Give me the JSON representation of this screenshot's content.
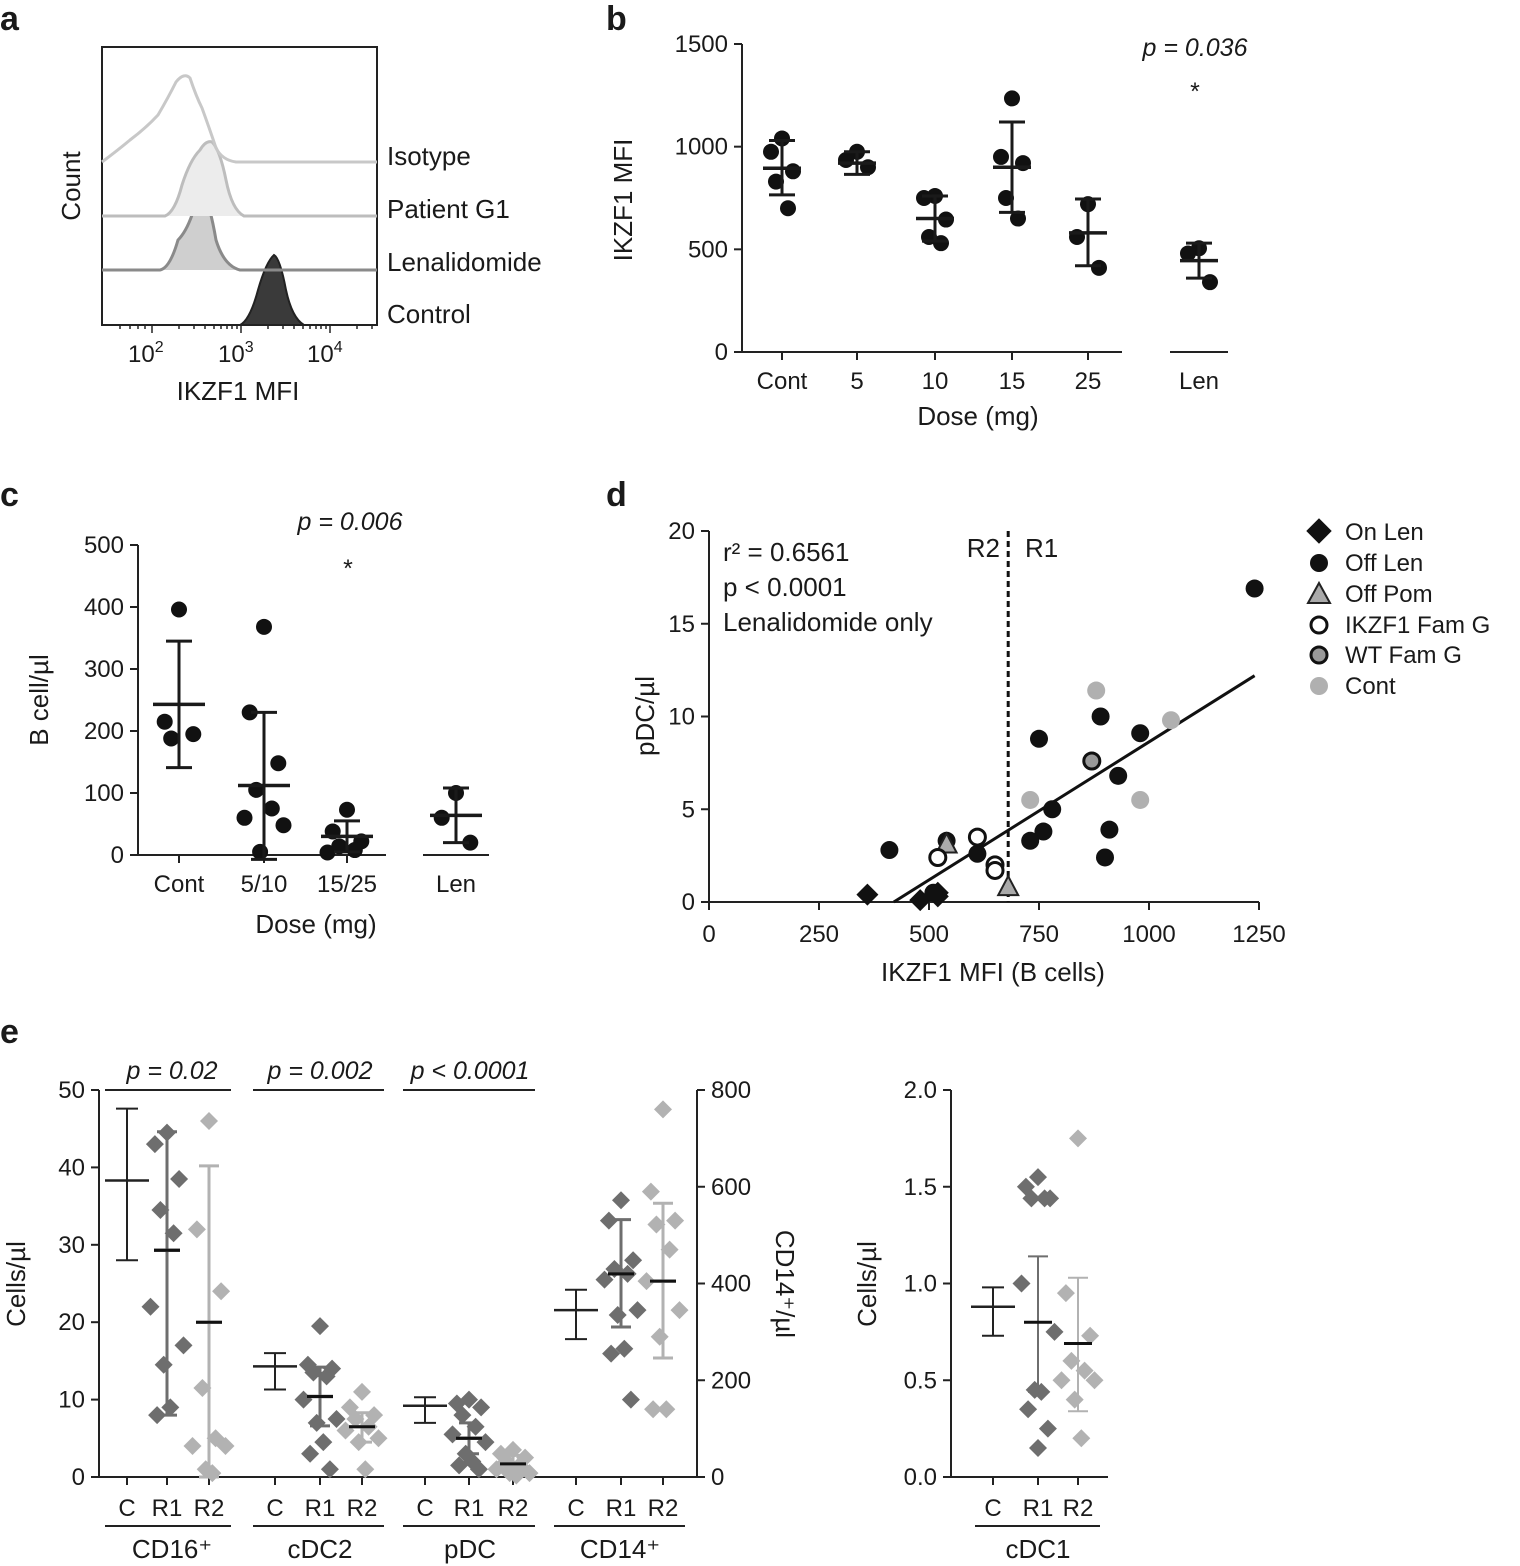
{
  "panels": {
    "a": {
      "label": "a",
      "xlabel": "IKZF1 MFI",
      "ylabel": "Count",
      "xticks": [
        "10",
        "10",
        "10"
      ],
      "xtick_exps": [
        "2",
        "3",
        "4"
      ],
      "tracks": [
        "Isotype",
        "Patient G1",
        "Lenalidomide",
        "Control"
      ],
      "colors": {
        "isotype": "#c8c8c8",
        "patient": "#bdbdbd",
        "lenalidomide": "#8a8a8a",
        "control": "#3a3a3a"
      }
    },
    "b": {
      "label": "b",
      "ylabel": "IKZF1 MFI",
      "xlabel": "Dose (mg)",
      "pvalue": "p = 0.036",
      "star": "*"
    },
    "c": {
      "label": "c",
      "ylabel": "B cell/µl",
      "xlabel": "Dose (mg)",
      "pvalue": "p = 0.006",
      "star": "*"
    },
    "d": {
      "label": "d",
      "xlabel": "IKZF1 MFI (B cells)",
      "ylabel": "pDC/µl",
      "stats": [
        "r² = 0.6561",
        "p < 0.0001",
        "Lenalidomide only"
      ],
      "region_left": "R2",
      "region_right": "R1",
      "legend": [
        "On Len",
        "Off Len",
        "Off Pom",
        "IKZF1 Fam G",
        "WT Fam G",
        "Cont"
      ]
    },
    "e": {
      "label": "e",
      "ylabel_left": "Cells/µl",
      "ylabel_right": "CD14⁺/µl",
      "ylabel_cdc1": "Cells/µl",
      "pvalues": [
        "p = 0.02",
        "p = 0.002",
        "p < 0.0001"
      ],
      "group_labels": [
        "CD16⁺",
        "cDC2",
        "pDC",
        "CD14⁺",
        "cDC1"
      ],
      "sub_labels": [
        "C",
        "R1",
        "R2"
      ]
    }
  },
  "chart_data": [
    {
      "panel": "a",
      "type": "histogram-overlay",
      "title": "",
      "xlabel": "IKZF1 MFI",
      "ylabel": "Count",
      "x_scale": "log10",
      "series": [
        {
          "name": "Isotype",
          "peak_log10": 2.3
        },
        {
          "name": "Patient G1",
          "peak_log10": 2.6
        },
        {
          "name": "Lenalidomide",
          "peak_log10": 2.55
        },
        {
          "name": "Control",
          "peak_log10": 3.35
        }
      ]
    },
    {
      "panel": "b",
      "type": "scatter",
      "xlabel": "Dose (mg)",
      "ylabel": "IKZF1 MFI",
      "ylim": [
        0,
        1500
      ],
      "yticks": [
        0,
        500,
        1000,
        1500
      ],
      "categories": [
        "Cont",
        "5",
        "10",
        "15",
        "25",
        "Len"
      ],
      "points": [
        [
          1040,
          975,
          880,
          830,
          700
        ],
        [
          975,
          935,
          900
        ],
        [
          760,
          750,
          645,
          560,
          530
        ],
        [
          1235,
          950,
          920,
          750,
          650
        ],
        [
          720,
          560,
          410
        ],
        [
          505,
          480,
          340
        ]
      ],
      "means": [
        895,
        920,
        650,
        900,
        580,
        445
      ],
      "sd_upper": [
        1030,
        975,
        760,
        1120,
        745,
        530
      ],
      "sd_lower": [
        765,
        865,
        540,
        680,
        420,
        360
      ],
      "pvalue": "p = 0.036"
    },
    {
      "panel": "c",
      "type": "scatter",
      "xlabel": "Dose (mg)",
      "ylabel": "B cell/µl",
      "ylim": [
        0,
        500
      ],
      "yticks": [
        0,
        100,
        200,
        300,
        400,
        500
      ],
      "categories": [
        "Cont",
        "5/10",
        "15/25",
        "Len"
      ],
      "points": [
        [
          396,
          215,
          195,
          188
        ],
        [
          368,
          230,
          148,
          105,
          75,
          60,
          48,
          5
        ],
        [
          73,
          38,
          22,
          14,
          8,
          4
        ],
        [
          100,
          60,
          20
        ]
      ],
      "means": [
        243,
        112,
        30,
        64
      ],
      "sd_upper": [
        345,
        230,
        55,
        108
      ],
      "sd_lower": [
        141,
        -7,
        5,
        20
      ],
      "pvalue": "p = 0.006"
    },
    {
      "panel": "d",
      "type": "scatter",
      "xlabel": "IKZF1 MFI (B cells)",
      "ylabel": "pDC/µl",
      "xlim": [
        0,
        1250
      ],
      "ylim": [
        0,
        20
      ],
      "xticks": [
        0,
        250,
        500,
        750,
        1000,
        1250
      ],
      "yticks": [
        0,
        5,
        10,
        15,
        20
      ],
      "threshold_x": 680,
      "fit": {
        "x": [
          420,
          1240
        ],
        "y": [
          0,
          12.2
        ],
        "r2": 0.6561,
        "p": "< 0.0001"
      },
      "series": [
        {
          "name": "On Len",
          "marker": "diamond",
          "points": [
            [
              360,
              0.4
            ],
            [
              480,
              0.1
            ],
            [
              520,
              0.3
            ],
            [
              520,
              0.5
            ]
          ]
        },
        {
          "name": "Off Len",
          "marker": "circle",
          "points": [
            [
              1240,
              16.9
            ],
            [
              890,
              10.0
            ],
            [
              980,
              9.1
            ],
            [
              750,
              8.8
            ],
            [
              930,
              6.8
            ],
            [
              780,
              5.0
            ],
            [
              760,
              3.8
            ],
            [
              910,
              3.9
            ],
            [
              730,
              3.3
            ],
            [
              900,
              2.4
            ],
            [
              410,
              2.8
            ],
            [
              540,
              3.3
            ],
            [
              610,
              2.6
            ],
            [
              510,
              0.5
            ]
          ]
        },
        {
          "name": "Off Pom",
          "marker": "triangle",
          "points": [
            [
              540,
              3.1
            ],
            [
              680,
              0.8
            ]
          ]
        },
        {
          "name": "IKZF1 Fam G",
          "marker": "circle-open",
          "points": [
            [
              610,
              3.5
            ],
            [
              520,
              2.4
            ],
            [
              650,
              2.0
            ],
            [
              650,
              1.7
            ]
          ]
        },
        {
          "name": "WT Fam G",
          "marker": "circle-gray",
          "points": [
            [
              870,
              7.6
            ]
          ]
        },
        {
          "name": "Cont",
          "marker": "circle-light",
          "points": [
            [
              880,
              11.4
            ],
            [
              1050,
              9.8
            ],
            [
              730,
              5.5
            ],
            [
              980,
              5.5
            ]
          ]
        }
      ]
    },
    {
      "panel": "e",
      "type": "scatter",
      "ylabel_left": "Cells/µl",
      "ylim_left": [
        0,
        50
      ],
      "yticks_left": [
        0,
        10,
        20,
        30,
        40,
        50
      ],
      "ylabel_right": "CD14⁺/µl",
      "ylim_right": [
        0,
        800
      ],
      "yticks_right": [
        0,
        200,
        400,
        600,
        800
      ],
      "groups": [
        {
          "name": "CD16⁺",
          "axis": "left",
          "pvalue": "p = 0.02",
          "C": {
            "mean": 38.3,
            "upper": 47.6,
            "lower": 28.0
          },
          "R1": {
            "mean": 29.3,
            "upper": 44.6,
            "lower": 8.0,
            "points": [
              44.5,
              43.0,
              38.5,
              34.5,
              31.5,
              22.0,
              17.0,
              14.5,
              9.0,
              8.0
            ]
          },
          "R2": {
            "mean": 20.0,
            "upper": 40.2,
            "lower": 0.0,
            "points": [
              46.0,
              32.0,
              24.0,
              11.5,
              5.0,
              4.0,
              4.0,
              1.0,
              0.5
            ]
          }
        },
        {
          "name": "cDC2",
          "axis": "left",
          "pvalue": "p = 0.002",
          "C": {
            "mean": 14.3,
            "upper": 16.0,
            "lower": 11.3
          },
          "R1": {
            "mean": 10.4,
            "upper": 14.2,
            "lower": 6.6,
            "points": [
              19.5,
              14.5,
              14.0,
              13.5,
              13.0,
              10.0,
              7.5,
              7.0,
              4.5,
              3.0,
              1.0
            ]
          },
          "R2": {
            "mean": 6.5,
            "upper": 8.3,
            "lower": 4.5,
            "points": [
              11.0,
              9.0,
              8.0,
              7.5,
              6.5,
              6.0,
              5.0,
              4.5,
              1.0
            ]
          }
        },
        {
          "name": "pDC",
          "axis": "left",
          "pvalue": "p < 0.0001",
          "C": {
            "mean": 9.2,
            "upper": 10.3,
            "lower": 7.0
          },
          "R1": {
            "mean": 5.0,
            "upper": 7.0,
            "lower": 3.0,
            "points": [
              10.0,
              9.5,
              9.0,
              8.0,
              6.5,
              5.5,
              4.5,
              3.0,
              2.0,
              1.5,
              1.0
            ]
          },
          "R2": {
            "mean": 1.7,
            "upper": 2.8,
            "lower": 0.8,
            "points": [
              3.5,
              3.0,
              2.5,
              2.0,
              1.5,
              1.0,
              0.5,
              0.5,
              0.2
            ]
          }
        },
        {
          "name": "CD14⁺",
          "axis": "right",
          "C": {
            "mean": 345,
            "upper": 387,
            "lower": 285
          },
          "R1": {
            "mean": 420,
            "upper": 532,
            "lower": 310,
            "points": [
              572,
              530,
              448,
              430,
              420,
              408,
              345,
              335,
              265,
              255,
              160
            ]
          },
          "R2": {
            "mean": 405,
            "upper": 566,
            "lower": 246,
            "points": [
              760,
              590,
              530,
              522,
              470,
              405,
              345,
              290,
              140,
              140
            ]
          }
        }
      ]
    },
    {
      "panel": "e-cdc1",
      "type": "scatter",
      "ylabel": "Cells/µl",
      "ylim": [
        0,
        2.0
      ],
      "yticks": [
        0.0,
        0.5,
        1.0,
        1.5,
        2.0
      ],
      "groups": [
        {
          "name": "cDC1",
          "C": {
            "mean": 0.88,
            "upper": 0.98,
            "lower": 0.73
          },
          "R1": {
            "mean": 0.8,
            "upper": 1.14,
            "lower": 0.44,
            "points": [
              1.55,
              1.5,
              1.44,
              1.44,
              1.44,
              1.0,
              0.75,
              0.45,
              0.44,
              0.35,
              0.25,
              0.15
            ]
          },
          "R2": {
            "mean": 0.69,
            "upper": 1.03,
            "lower": 0.34,
            "points": [
              1.75,
              0.95,
              0.73,
              0.6,
              0.55,
              0.5,
              0.5,
              0.4,
              0.2
            ]
          }
        }
      ]
    }
  ]
}
